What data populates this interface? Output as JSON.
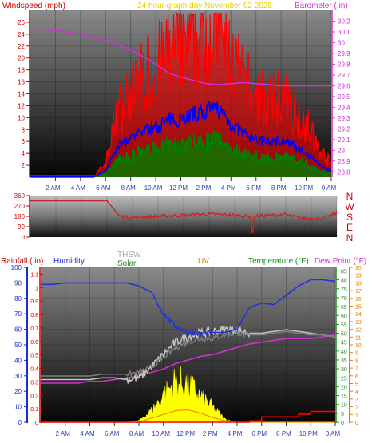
{
  "title": "24 hour graph day   November 02 2025",
  "top_panel": {
    "left_label": "Windspeed (mph)",
    "right_label": "Barometer (.in)",
    "left_ticks": [
      "2",
      "4",
      "6",
      "8",
      "10",
      "12",
      "14",
      "16",
      "18",
      "20",
      "22",
      "24",
      "26"
    ],
    "right_ticks": [
      "28.8",
      "28.9",
      "29",
      "29.1",
      "29.2",
      "29.3",
      "29.4",
      "29.5",
      "29.6",
      "29.7",
      "29.8",
      "29.9",
      "30",
      "30.1",
      "30.2"
    ]
  },
  "mid_panel": {
    "left_ticks": [
      "360",
      "270",
      "180",
      "90",
      "0"
    ],
    "direction_labels": [
      "N",
      "W",
      "S",
      "E",
      "N"
    ]
  },
  "bottom_panel": {
    "labels": {
      "rainfall": "Rainfall (.in)",
      "humidity": "Humidity",
      "thsw": "THSW",
      "solar": "Solar",
      "uv": "UV",
      "temperature": "Temperature (°F)",
      "dewpoint": "Dew Point (°F)"
    },
    "humidity_ticks": [
      "0",
      "10",
      "20",
      "30",
      "40",
      "50",
      "60",
      "70",
      "80",
      "90",
      "100"
    ],
    "rain_ticks": [
      "0",
      "0.1",
      "0.2",
      "0.3",
      "0.4",
      "0.5",
      "0.6",
      "0.7",
      "0.8",
      "0.9",
      "1",
      "1.1"
    ],
    "temp_ticks": [
      "0",
      "5",
      "10",
      "15",
      "20",
      "25",
      "30",
      "35",
      "40",
      "45",
      "50",
      "55",
      "60",
      "65",
      "70",
      "75",
      "80",
      "85"
    ],
    "uv_ticks": [
      "0",
      "1",
      "2",
      "3",
      "4",
      "5",
      "6",
      "7",
      "8",
      "9",
      "10",
      "11",
      "12",
      "13",
      "14",
      "15",
      "16",
      "17",
      "18",
      "19",
      "20"
    ]
  },
  "x_ticks": [
    "2 AM",
    "4 AM",
    "6 AM",
    "8 AM",
    "10 AM",
    "12 PM",
    "2 PM",
    "4 PM",
    "6 PM",
    "8 PM",
    "10 PM",
    "0 AM"
  ],
  "colors": {
    "wind": "#ff0000",
    "avg_wind": "#0000ff",
    "low_wind": "#008000",
    "barometer": "#cc33cc",
    "direction": "#cc2222",
    "humidity": "#2233dd",
    "temperature": "#808080",
    "thsw": "#c0c0c0",
    "dewpoint": "#cc33cc",
    "solar": "#ffff00",
    "uv": "#ff8800",
    "rain": "#ff0000",
    "title": "#e8d000"
  },
  "chart_data": [
    {
      "type": "line",
      "title": "24 hour graph day   November 02 2025",
      "x": [
        0,
        1,
        2,
        3,
        4,
        5,
        6,
        7,
        8,
        9,
        10,
        11,
        12,
        13,
        14,
        15,
        16,
        17,
        18,
        19,
        20,
        21,
        22,
        23,
        24
      ],
      "xlabel": "",
      "ylabel": "Windspeed (mph)",
      "ylim": [
        0,
        28
      ],
      "y2label": "Barometer (.in)",
      "y2lim": [
        28.75,
        30.3
      ],
      "series": [
        {
          "name": "Windspeed (mph)",
          "axis": "left",
          "values": [
            0,
            0,
            0,
            0,
            0,
            0,
            2,
            10,
            12,
            15,
            16,
            18,
            19,
            20,
            21,
            22,
            17,
            14,
            12,
            11,
            12,
            10,
            8,
            4,
            2
          ]
        },
        {
          "name": "Barometer (.in)",
          "axis": "right",
          "values": [
            30.12,
            30.12,
            30.11,
            30.1,
            30.08,
            30.05,
            30.02,
            29.98,
            29.93,
            29.87,
            29.8,
            29.72,
            29.68,
            29.65,
            29.62,
            29.61,
            29.62,
            29.63,
            29.62,
            29.61,
            29.6,
            29.6,
            29.6,
            29.6,
            29.6
          ]
        }
      ]
    },
    {
      "type": "line",
      "xlabel": "",
      "ylabel": "",
      "ylim": [
        0,
        360
      ],
      "x": [
        0,
        1,
        2,
        3,
        4,
        5,
        6,
        7,
        8,
        9,
        10,
        11,
        12,
        13,
        14,
        15,
        16,
        17,
        18,
        19,
        20,
        21,
        22,
        23,
        24
      ],
      "series": [
        {
          "name": "",
          "values": [
            315,
            315,
            315,
            315,
            315,
            315,
            315,
            180,
            170,
            175,
            180,
            185,
            190,
            195,
            200,
            195,
            190,
            180,
            185,
            190,
            195,
            170,
            160,
            160,
            210
          ]
        }
      ]
    },
    {
      "type": "line",
      "xlabel": "",
      "x": [
        0,
        1,
        2,
        3,
        4,
        5,
        6,
        7,
        8,
        9,
        10,
        11,
        12,
        13,
        14,
        15,
        16,
        17,
        18,
        19,
        20,
        21,
        22,
        23,
        24
      ],
      "series": [
        {
          "name": "Humidity",
          "axis": "humidity",
          "ylim": [
            0,
            100
          ],
          "values": [
            89,
            89,
            90,
            90,
            90,
            90,
            90,
            90,
            88,
            84,
            70,
            62,
            58,
            57,
            58,
            58,
            60,
            74,
            77,
            76,
            82,
            88,
            92,
            92,
            91
          ]
        },
        {
          "name": "Temperature (°F)",
          "axis": "temp",
          "ylim": [
            0,
            87
          ],
          "values": [
            26,
            26,
            26,
            26,
            26,
            27,
            27,
            27,
            28,
            31,
            36,
            42,
            45,
            47,
            47,
            49,
            50,
            49,
            49,
            50,
            51,
            50,
            49,
            49,
            48
          ]
        },
        {
          "name": "THSW",
          "axis": "temp",
          "ylim": [
            0,
            87
          ],
          "values": [
            24,
            24,
            24,
            24,
            24,
            25,
            25,
            24,
            25,
            31,
            38,
            45,
            48,
            50,
            51,
            52,
            52,
            50,
            50,
            51,
            52,
            51,
            50,
            49,
            48
          ]
        },
        {
          "name": "Dew Point (°F)",
          "axis": "temp",
          "ylim": [
            0,
            87
          ],
          "values": [
            22,
            22,
            22,
            22,
            23,
            23,
            24,
            25,
            26,
            28,
            30,
            33,
            35,
            37,
            38,
            40,
            42,
            44,
            45,
            46,
            47,
            47,
            47,
            48,
            49
          ]
        },
        {
          "name": "Solar",
          "axis": "uv",
          "ylim": [
            0,
            20
          ],
          "values": [
            0,
            0,
            0,
            0,
            0,
            0,
            0,
            0,
            0.2,
            1.5,
            3.5,
            5.5,
            5,
            3.5,
            2,
            0.4,
            0,
            0,
            0,
            0,
            0,
            0,
            0,
            0,
            0
          ]
        },
        {
          "name": "UV",
          "axis": "uv",
          "ylim": [
            0,
            20
          ],
          "values": [
            0,
            0,
            0,
            0,
            0,
            0,
            0,
            0,
            0,
            0.5,
            1,
            1.5,
            1.6,
            1.2,
            0.6,
            0.2,
            0,
            0,
            0,
            0,
            0,
            0,
            0,
            0,
            0
          ]
        },
        {
          "name": "Rainfall (.in)",
          "axis": "rain",
          "ylim": [
            0,
            1.15
          ],
          "values": [
            0,
            0,
            0,
            0,
            0,
            0,
            0,
            0,
            0,
            0,
            0,
            0,
            0,
            0,
            0,
            0,
            0,
            0.01,
            0.04,
            0.04,
            0.04,
            0.06,
            0.08,
            0.08,
            0.08
          ]
        }
      ]
    }
  ]
}
